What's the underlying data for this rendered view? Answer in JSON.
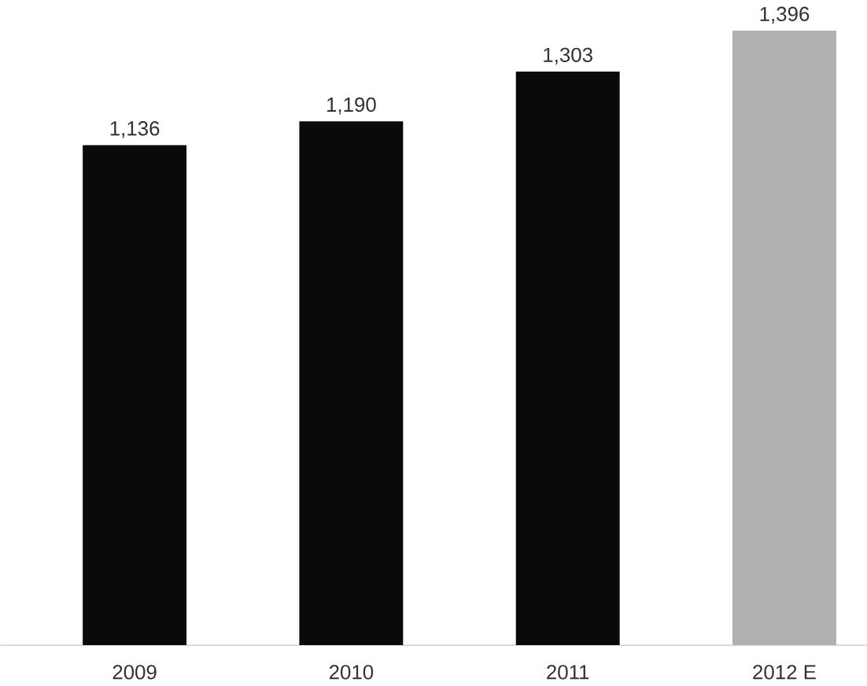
{
  "chart_data": {
    "type": "bar",
    "categories": [
      "2009",
      "2010",
      "2011",
      "2012 E"
    ],
    "values": [
      1136,
      1190,
      1303,
      1396
    ],
    "colors": [
      "#0a0a0a",
      "#0a0a0a",
      "#0a0a0a",
      "#b0b0b0"
    ],
    "value_labels": [
      "1,136",
      "1,190",
      "1,303",
      "1,396"
    ]
  }
}
